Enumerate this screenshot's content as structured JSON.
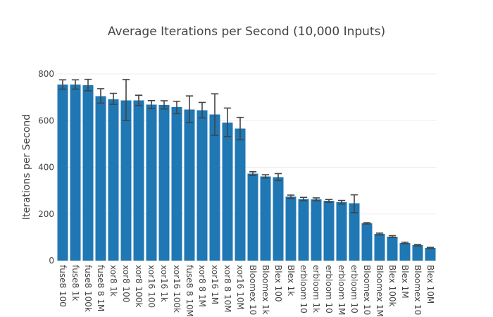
{
  "chart_data": {
    "type": "bar",
    "title": "Average Iterations per Second (10,000 Inputs)",
    "xlabel": "",
    "ylabel": "Iterations per Second",
    "ylim": [
      0,
      800
    ],
    "yticks": [
      0,
      200,
      400,
      600,
      800
    ],
    "grid": true,
    "bar_color": "#1f77b4",
    "error_color": "#444444",
    "categories": [
      "fuse8 100",
      "fuse8 1k",
      "fuse8 100k",
      "fuse8 8 1M",
      "xor8 1k",
      "xor8 100",
      "xor8 100k",
      "xor16 100",
      "xor16 1k",
      "xor16 100k",
      "fuse8 8 10M",
      "xor8 8 1M",
      "xor16 1M",
      "xor8 8 10M",
      "xor16 10M",
      "Bloomex 10",
      "Bloomex 1k",
      "Blex 100",
      "Blex 1k",
      "erbloom 10",
      "erbloom 1k",
      "erbloom 10",
      "erbloom 1M",
      "erbloom 10",
      "Bloomex 10",
      "Bloomex 1M",
      "Blex 100k",
      "Blex 1M",
      "Bloomex 10",
      "Blex 10M"
    ],
    "values": [
      755,
      755,
      752,
      705,
      692,
      687,
      687,
      668,
      667,
      658,
      648,
      645,
      626,
      592,
      566,
      373,
      361,
      358,
      274,
      264,
      263,
      256,
      250,
      246,
      160,
      114,
      103,
      76,
      66,
      55
    ],
    "error_low": [
      735,
      735,
      728,
      675,
      670,
      600,
      665,
      652,
      650,
      630,
      592,
      612,
      537,
      532,
      518,
      365,
      354,
      343,
      267,
      257,
      257,
      250,
      242,
      206,
      157,
      110,
      99,
      73,
      63,
      53
    ],
    "error_high": [
      775,
      775,
      777,
      737,
      717,
      776,
      709,
      686,
      685,
      683,
      706,
      678,
      715,
      654,
      614,
      381,
      368,
      373,
      281,
      271,
      269,
      262,
      258,
      282,
      163,
      118,
      107,
      79,
      69,
      57
    ]
  }
}
